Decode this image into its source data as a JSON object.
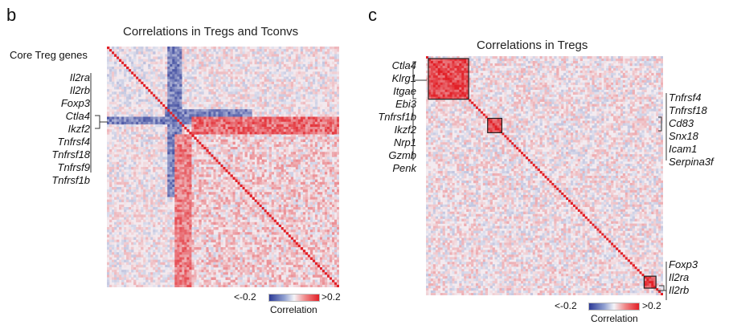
{
  "chart_data": [
    {
      "type": "heatmap",
      "panel_label": "b",
      "title": "Correlations in Tregs and Tconvs",
      "row_group_label": "Core Treg genes",
      "genes": [
        "Il2ra",
        "Il2rb",
        "Foxp3",
        "Ctla4",
        "Ikzf2",
        "Tnfrsf4",
        "Tnfrsf18",
        "Tnfrsf9",
        "Tnfrsf1b"
      ],
      "highlighted_gene": "Ikzf2",
      "colorbar": {
        "min_label": "<-0.2",
        "max_label": ">0.2",
        "label": "Correlation",
        "range": [
          -0.2,
          0.2
        ]
      },
      "colors": {
        "negative": "#2c3a96",
        "zero": "#f4f4f8",
        "positive": "#e21f26"
      }
    },
    {
      "type": "heatmap",
      "panel_label": "c",
      "title": "Correlations in Tregs",
      "gene_groups": [
        {
          "genes": [
            "Ctla4",
            "Klrg1",
            "Itgae",
            "Ebi3"
          ]
        },
        {
          "genes": [
            "Tnfrsf1b",
            "Ikzf2",
            "Nrp1",
            "Gzmb",
            "Penk"
          ]
        },
        {
          "genes": [
            "Tnfrsf4",
            "Tnfrsf18",
            "Cd83",
            "Snx18",
            "Icam1",
            "Serpina3f"
          ]
        },
        {
          "genes": [
            "Foxp3",
            "Il2ra",
            "Il2rb"
          ]
        }
      ],
      "colorbar": {
        "min_label": "<-0.2",
        "max_label": ">0.2",
        "label": "Correlation",
        "range": [
          -0.2,
          0.2
        ]
      },
      "colors": {
        "negative": "#2c3a96",
        "zero": "#f4f4f8",
        "positive": "#e21f26"
      }
    }
  ]
}
